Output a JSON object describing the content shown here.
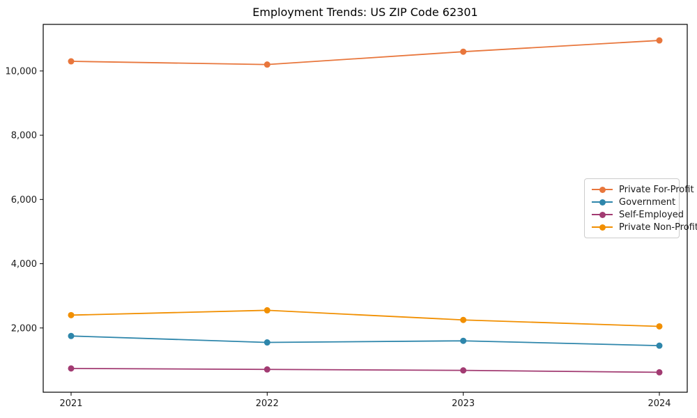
{
  "chart_data": {
    "type": "line",
    "title": "Employment Trends: US ZIP Code 62301",
    "xlabel": "",
    "ylabel": "",
    "categories": [
      "2021",
      "2022",
      "2023",
      "2024"
    ],
    "series": [
      {
        "name": "Private For-Profit",
        "color": "#E8763C",
        "values": [
          10300,
          10200,
          10600,
          10950
        ]
      },
      {
        "name": "Government",
        "color": "#2E86AB",
        "values": [
          1750,
          1550,
          1600,
          1450
        ]
      },
      {
        "name": "Self-Employed",
        "color": "#A23B72",
        "values": [
          740,
          710,
          680,
          620
        ]
      },
      {
        "name": "Private Non-Profit",
        "color": "#F18F01",
        "values": [
          2400,
          2550,
          2250,
          2050
        ]
      }
    ],
    "ylim": [
      0,
      11450
    ],
    "yticks": [
      2000,
      4000,
      6000,
      8000,
      10000
    ],
    "ytick_labels": [
      "2,000",
      "4,000",
      "6,000",
      "8,000",
      "10,000"
    ],
    "grid": false,
    "legend_position": "center-right",
    "marker": "circle",
    "axis_color": "#000000",
    "tick_label_color": "#1a1a1a"
  }
}
